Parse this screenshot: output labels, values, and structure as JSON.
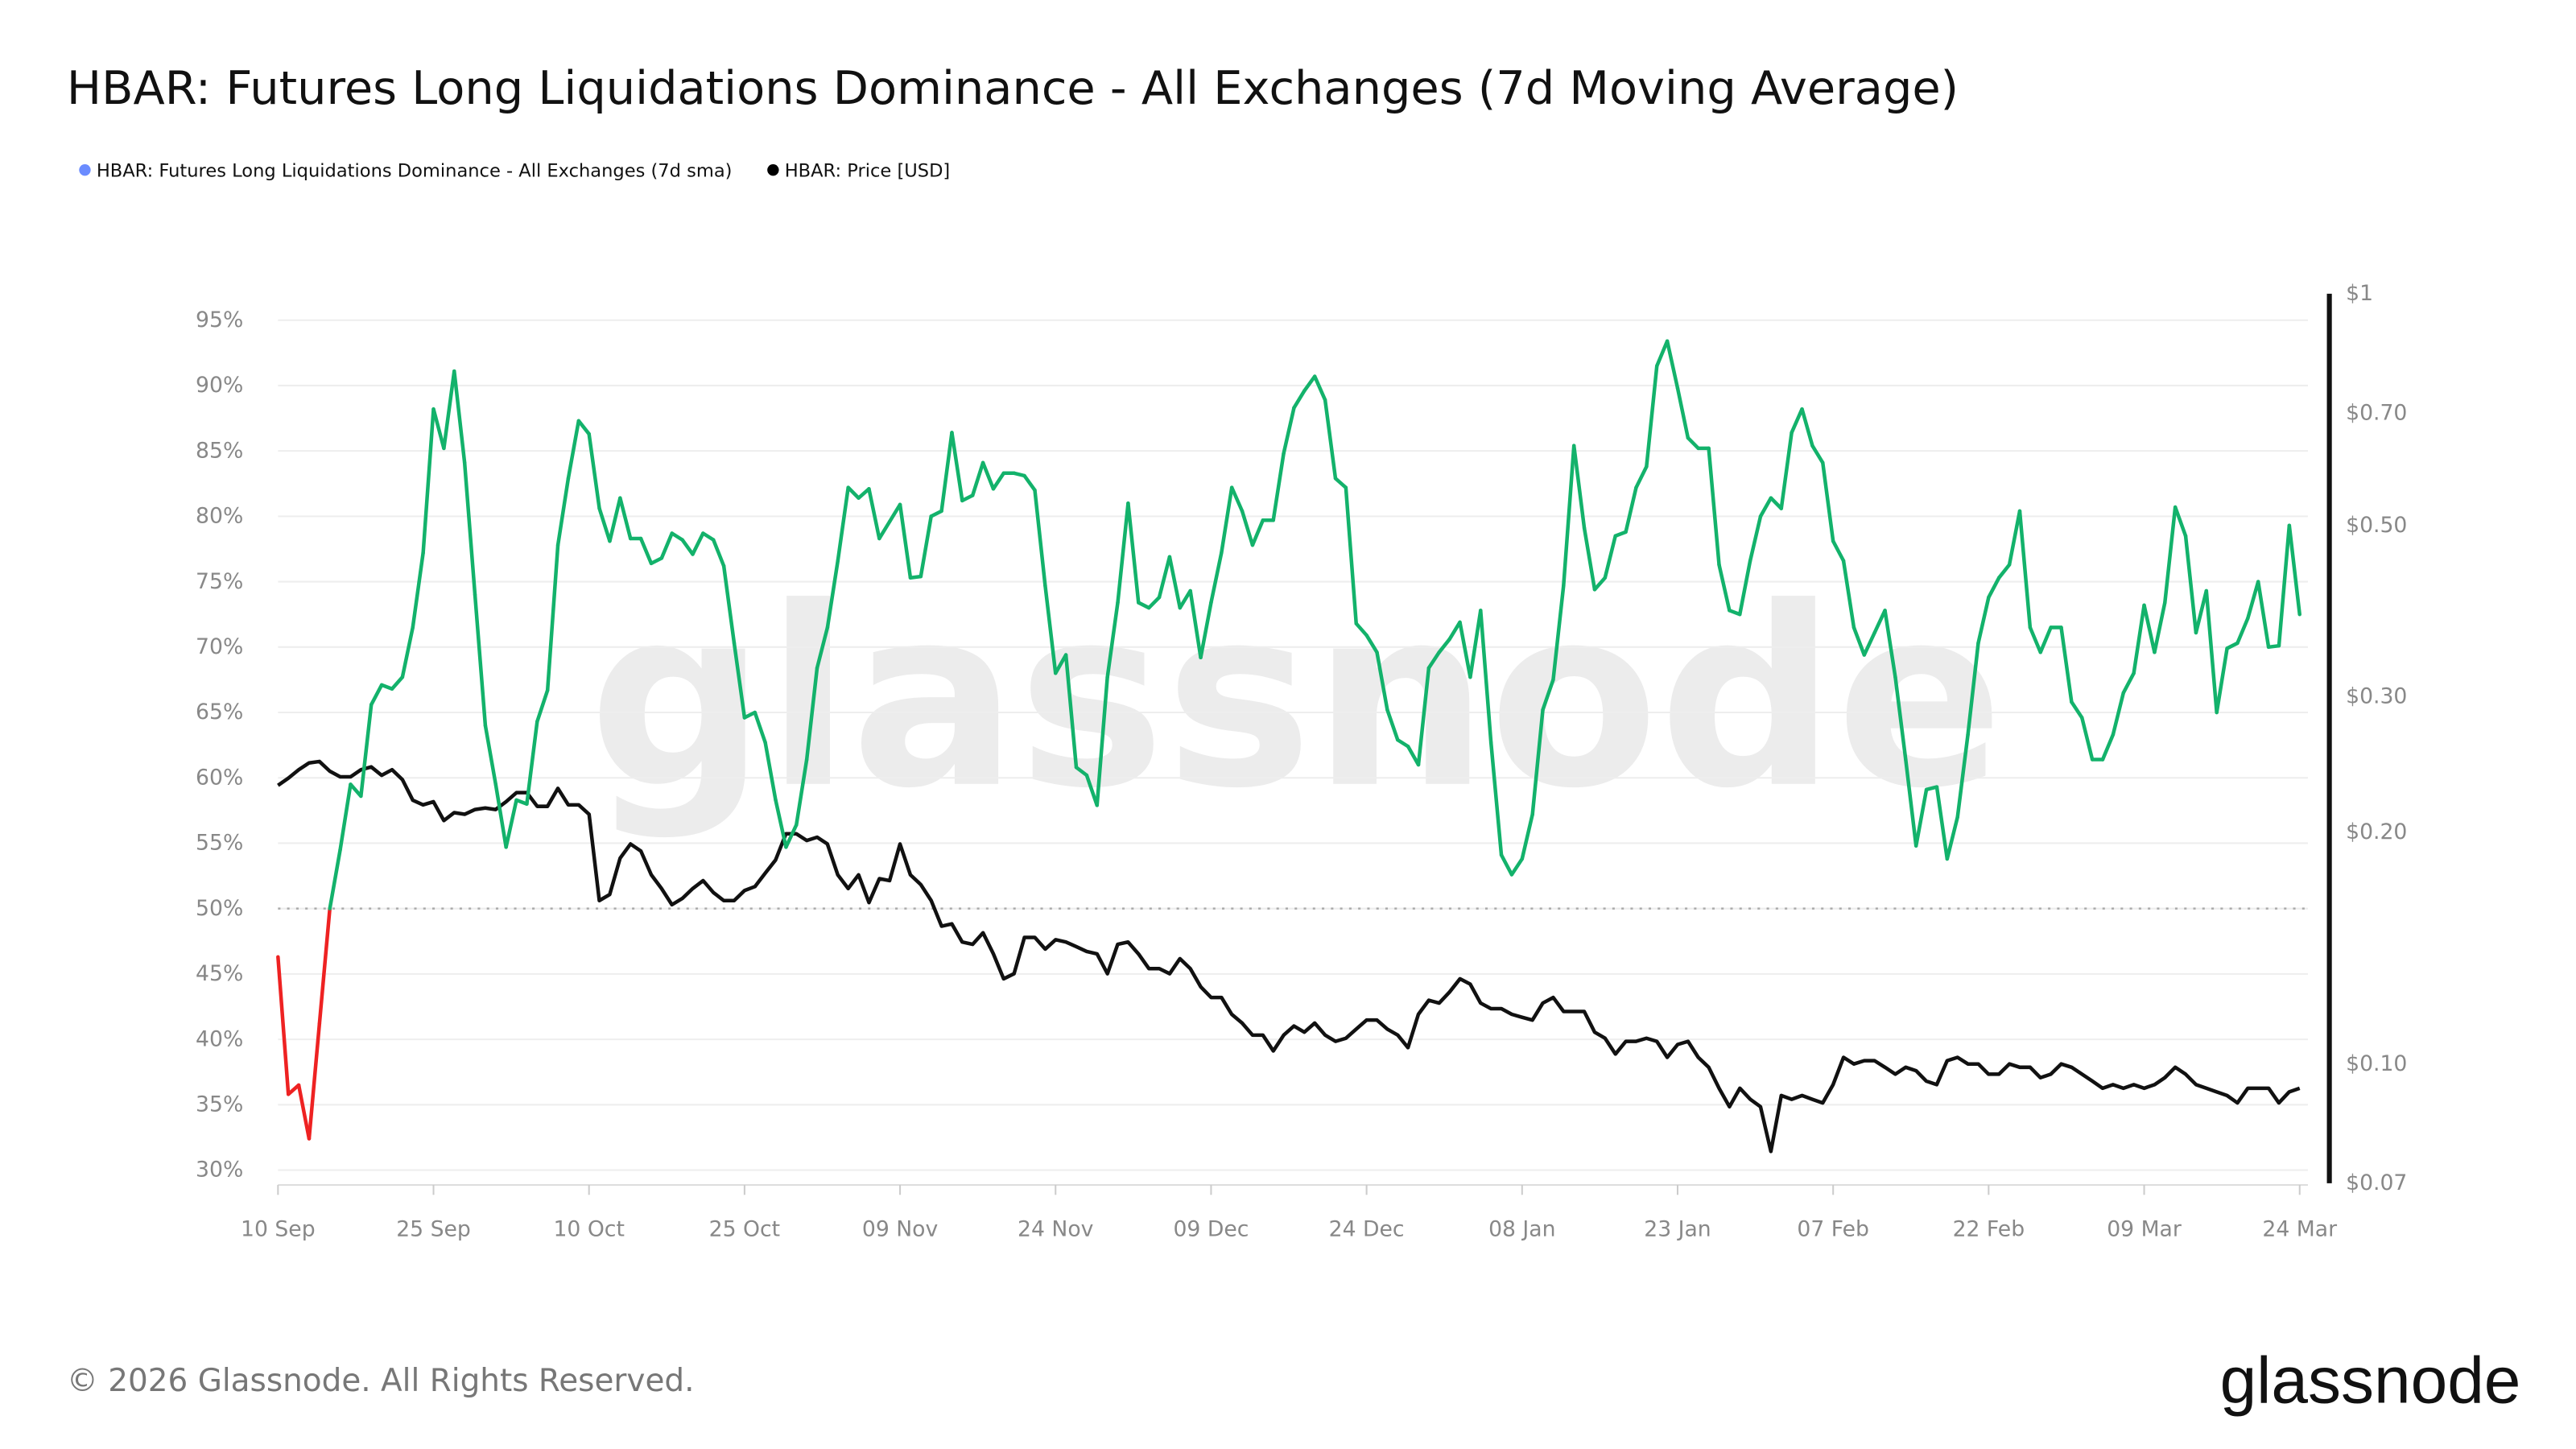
{
  "title": "HBAR: Futures Long Liquidations Dominance - All Exchanges (7d Moving Average)",
  "legend": [
    {
      "label": "HBAR: Futures Long Liquidations Dominance - All Exchanges (7d sma)",
      "color": "#6b8cff"
    },
    {
      "label": "HBAR: Price [USD]",
      "color": "#000000"
    }
  ],
  "watermark": "glassnode",
  "footer": {
    "copyright": "© 2026 Glassnode. All Rights Reserved.",
    "logo": "glassnode"
  },
  "colors": {
    "dominance_above_50": "#13b26b",
    "dominance_below_50": "#ee2222",
    "price": "#111111",
    "reference_line": "#aaaaaa"
  },
  "chart_data": {
    "type": "line",
    "title": "HBAR: Futures Long Liquidations Dominance - All Exchanges (7d Moving Average)",
    "x_ticks": [
      "10 Sep",
      "25 Sep",
      "10 Oct",
      "25 Oct",
      "09 Nov",
      "24 Nov",
      "09 Dec",
      "24 Dec",
      "08 Jan",
      "23 Jan",
      "07 Feb",
      "22 Feb",
      "09 Mar",
      "24 Mar"
    ],
    "y_left": {
      "ticks": [
        "30%",
        "35%",
        "40%",
        "45%",
        "50%",
        "55%",
        "60%",
        "65%",
        "70%",
        "75%",
        "80%",
        "85%",
        "90%",
        "95%"
      ],
      "range": [
        30,
        95
      ],
      "unit": "%"
    },
    "y_right": {
      "ticks": [
        {
          "label": "$1",
          "value": 1
        },
        {
          "label": "$0.70",
          "value": 0.7
        },
        {
          "label": "$0.50",
          "value": 0.5
        },
        {
          "label": "$0.30",
          "value": 0.3
        },
        {
          "label": "$0.20",
          "value": 0.2
        },
        {
          "label": "$0.10",
          "value": 0.1
        },
        {
          "label": "$0.07",
          "value": 0.07
        }
      ],
      "range": [
        0.07,
        1
      ],
      "scale": "log"
    },
    "reference_line": {
      "value": 50,
      "style": "dotted"
    },
    "grid": true,
    "legend_position": "top-left",
    "x": [
      "2025-09-10",
      "2025-09-11",
      "2025-09-12",
      "2025-09-13",
      "2025-09-14",
      "2025-09-15",
      "2025-09-16",
      "2025-09-17",
      "2025-09-18",
      "2025-09-19",
      "2025-09-20",
      "2025-09-21",
      "2025-09-22",
      "2025-09-23",
      "2025-09-24",
      "2025-09-25",
      "2025-09-26",
      "2025-09-27",
      "2025-09-28",
      "2025-09-29",
      "2025-09-30",
      "2025-10-01",
      "2025-10-02",
      "2025-10-03",
      "2025-10-04",
      "2025-10-05",
      "2025-10-06",
      "2025-10-07",
      "2025-10-08",
      "2025-10-09",
      "2025-10-10",
      "2025-10-11",
      "2025-10-12",
      "2025-10-13",
      "2025-10-14",
      "2025-10-15",
      "2025-10-16",
      "2025-10-17",
      "2025-10-18",
      "2025-10-19",
      "2025-10-20",
      "2025-10-21",
      "2025-10-22",
      "2025-10-23",
      "2025-10-24",
      "2025-10-25",
      "2025-10-26",
      "2025-10-27",
      "2025-10-28",
      "2025-10-29",
      "2025-10-30",
      "2025-10-31",
      "2025-11-01",
      "2025-11-02",
      "2025-11-03",
      "2025-11-04",
      "2025-11-05",
      "2025-11-06",
      "2025-11-07",
      "2025-11-08",
      "2025-11-09",
      "2025-11-10",
      "2025-11-11",
      "2025-11-12",
      "2025-11-13",
      "2025-11-14",
      "2025-11-15",
      "2025-11-16",
      "2025-11-17",
      "2025-11-18",
      "2025-11-19",
      "2025-11-20",
      "2025-11-21",
      "2025-11-22",
      "2025-11-23",
      "2025-11-24",
      "2025-11-25",
      "2025-11-26",
      "2025-11-27",
      "2025-11-28",
      "2025-11-29",
      "2025-11-30",
      "2025-12-01",
      "2025-12-02",
      "2025-12-03",
      "2025-12-04",
      "2025-12-05",
      "2025-12-06",
      "2025-12-07",
      "2025-12-08",
      "2025-12-09",
      "2025-12-10",
      "2025-12-11",
      "2025-12-12",
      "2025-12-13",
      "2025-12-14",
      "2025-12-15",
      "2025-12-16",
      "2025-12-17",
      "2025-12-18",
      "2025-12-19",
      "2025-12-20",
      "2025-12-21",
      "2025-12-22",
      "2025-12-23",
      "2025-12-24",
      "2025-12-25",
      "2025-12-26",
      "2025-12-27",
      "2025-12-28",
      "2025-12-29",
      "2025-12-30",
      "2025-12-31",
      "2026-01-01",
      "2026-01-02",
      "2026-01-03",
      "2026-01-04",
      "2026-01-05",
      "2026-01-06",
      "2026-01-07",
      "2026-01-08",
      "2026-01-09",
      "2026-01-10",
      "2026-01-11",
      "2026-01-12",
      "2026-01-13",
      "2026-01-14",
      "2026-01-15",
      "2026-01-16",
      "2026-01-17",
      "2026-01-18",
      "2026-01-19",
      "2026-01-20",
      "2026-01-21",
      "2026-01-22",
      "2026-01-23",
      "2026-01-24",
      "2026-01-25",
      "2026-01-26",
      "2026-01-27",
      "2026-01-28",
      "2026-01-29",
      "2026-01-30",
      "2026-01-31",
      "2026-02-01",
      "2026-02-02",
      "2026-02-03",
      "2026-02-04",
      "2026-02-05",
      "2026-02-06",
      "2026-02-07",
      "2026-02-08",
      "2026-02-09",
      "2026-02-10",
      "2026-02-11",
      "2026-02-12",
      "2026-02-13",
      "2026-02-14",
      "2026-02-15",
      "2026-02-16",
      "2026-02-17",
      "2026-02-18",
      "2026-02-19",
      "2026-02-20",
      "2026-02-21",
      "2026-02-22",
      "2026-02-23",
      "2026-02-24",
      "2026-02-25",
      "2026-02-26",
      "2026-02-27",
      "2026-02-28",
      "2026-03-01",
      "2026-03-02",
      "2026-03-03",
      "2026-03-04",
      "2026-03-05",
      "2026-03-06",
      "2026-03-07",
      "2026-03-08",
      "2026-03-09",
      "2026-03-10",
      "2026-03-11",
      "2026-03-12",
      "2026-03-13",
      "2026-03-14",
      "2026-03-15",
      "2026-03-16",
      "2026-03-17",
      "2026-03-18",
      "2026-03-19",
      "2026-03-20",
      "2026-03-21",
      "2026-03-22",
      "2026-03-23",
      "2026-03-24"
    ],
    "series": [
      {
        "name": "HBAR: Futures Long Liquidations Dominance - All Exchanges (7d sma)",
        "axis": "left",
        "values": [
          46.3,
          35.8,
          36.5,
          32.4,
          41.2,
          50.0,
          54.5,
          59.5,
          58.6,
          65.6,
          67.1,
          66.8,
          67.7,
          71.5,
          77.2,
          88.2,
          85.2,
          91.1,
          84.1,
          74.0,
          64.0,
          59.5,
          54.7,
          58.3,
          58.0,
          64.3,
          66.7,
          77.8,
          82.9,
          87.3,
          86.3,
          80.6,
          78.1,
          81.4,
          78.3,
          78.3,
          76.4,
          76.8,
          78.7,
          78.2,
          77.1,
          78.7,
          78.2,
          76.2,
          70.3,
          64.6,
          65.0,
          62.7,
          58.3,
          54.7,
          56.4,
          61.4,
          68.4,
          71.5,
          76.6,
          82.2,
          81.4,
          82.1,
          78.3,
          79.6,
          80.9,
          75.3,
          75.4,
          80.0,
          80.4,
          86.4,
          81.2,
          81.6,
          84.1,
          82.1,
          83.3,
          83.3,
          83.1,
          82.0,
          74.7,
          68.0,
          69.4,
          60.8,
          60.2,
          57.9,
          67.7,
          73.4,
          81.0,
          73.4,
          73.0,
          73.8,
          76.9,
          73.0,
          74.3,
          69.2,
          73.4,
          77.2,
          82.2,
          80.4,
          77.8,
          79.7,
          79.7,
          84.8,
          88.3,
          89.6,
          90.7,
          88.9,
          82.9,
          82.2,
          71.8,
          70.9,
          69.6,
          65.2,
          62.9,
          62.4,
          61.0,
          68.4,
          69.6,
          70.6,
          71.9,
          67.7,
          72.8,
          62.7,
          54.1,
          52.6,
          53.8,
          57.2,
          65.2,
          67.5,
          74.7,
          85.4,
          79.1,
          74.4,
          75.3,
          78.5,
          78.8,
          82.2,
          83.8,
          91.5,
          93.4,
          89.8,
          86.0,
          85.2,
          85.2,
          76.3,
          72.8,
          72.5,
          76.6,
          80.0,
          81.4,
          80.6,
          86.4,
          88.2,
          85.4,
          84.1,
          78.1,
          76.6,
          71.5,
          69.4,
          71.1,
          72.8,
          67.7,
          61.4,
          54.8,
          59.1,
          59.3,
          53.8,
          57.0,
          63.3,
          70.3,
          73.8,
          75.3,
          76.3,
          80.4,
          71.5,
          69.6,
          71.5,
          71.5,
          65.8,
          64.6,
          61.4,
          61.4,
          63.3,
          66.5,
          68.0,
          73.2,
          69.6,
          73.4,
          80.7,
          78.5,
          71.1,
          74.3,
          65.0,
          69.9,
          70.3,
          72.2,
          75.0,
          70.0,
          70.1,
          79.3,
          72.5
        ]
      },
      {
        "name": "HBAR: Price [USD]",
        "axis": "right",
        "values": [
          0.23,
          0.235,
          0.241,
          0.246,
          0.247,
          0.24,
          0.236,
          0.236,
          0.241,
          0.243,
          0.237,
          0.241,
          0.234,
          0.22,
          0.217,
          0.219,
          0.207,
          0.212,
          0.211,
          0.214,
          0.215,
          0.214,
          0.219,
          0.225,
          0.225,
          0.216,
          0.216,
          0.228,
          0.217,
          0.217,
          0.211,
          0.163,
          0.166,
          0.185,
          0.193,
          0.189,
          0.176,
          0.169,
          0.161,
          0.164,
          0.169,
          0.173,
          0.167,
          0.163,
          0.163,
          0.168,
          0.17,
          0.177,
          0.184,
          0.199,
          0.199,
          0.195,
          0.197,
          0.193,
          0.176,
          0.169,
          0.176,
          0.162,
          0.174,
          0.173,
          0.193,
          0.176,
          0.171,
          0.163,
          0.151,
          0.152,
          0.144,
          0.143,
          0.148,
          0.139,
          0.129,
          0.131,
          0.146,
          0.146,
          0.141,
          0.145,
          0.144,
          0.142,
          0.14,
          0.139,
          0.131,
          0.143,
          0.144,
          0.139,
          0.133,
          0.133,
          0.131,
          0.137,
          0.133,
          0.126,
          0.122,
          0.122,
          0.116,
          0.113,
          0.109,
          0.109,
          0.104,
          0.109,
          0.112,
          0.11,
          0.113,
          0.109,
          0.107,
          0.108,
          0.111,
          0.114,
          0.114,
          0.111,
          0.109,
          0.105,
          0.116,
          0.121,
          0.12,
          0.124,
          0.129,
          0.127,
          0.12,
          0.118,
          0.118,
          0.116,
          0.115,
          0.114,
          0.12,
          0.122,
          0.117,
          0.117,
          0.117,
          0.11,
          0.108,
          0.103,
          0.107,
          0.107,
          0.108,
          0.107,
          0.102,
          0.106,
          0.107,
          0.102,
          0.099,
          0.093,
          0.088,
          0.093,
          0.09,
          0.088,
          0.077,
          0.091,
          0.09,
          0.091,
          0.09,
          0.089,
          0.094,
          0.102,
          0.1,
          0.101,
          0.101,
          0.099,
          0.097,
          0.099,
          0.098,
          0.095,
          0.094,
          0.101,
          0.102,
          0.1,
          0.1,
          0.097,
          0.097,
          0.1,
          0.099,
          0.099,
          0.096,
          0.097,
          0.1,
          0.099,
          0.097,
          0.095,
          0.093,
          0.094,
          0.093,
          0.094,
          0.093,
          0.094,
          0.096,
          0.099,
          0.097,
          0.094,
          0.093,
          0.092,
          0.091,
          0.089,
          0.093,
          0.093,
          0.093,
          0.089,
          0.092,
          0.093
        ]
      }
    ]
  }
}
